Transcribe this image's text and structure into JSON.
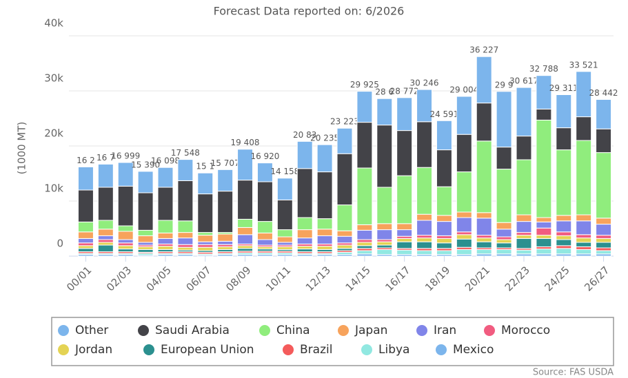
{
  "chart_data": {
    "type": "stacked_bar",
    "title": "Forecast Data reported on: 6/2026",
    "y_label": "(1000 MT)",
    "source": "Source: FAS USDA",
    "categories": [
      "00/01",
      null,
      "02/03",
      null,
      "04/05",
      null,
      "06/07",
      null,
      "08/09",
      null,
      "10/11",
      null,
      "12/13",
      null,
      "14/15",
      null,
      "16/17",
      null,
      "18/19",
      null,
      "20/21",
      null,
      "22/23",
      null,
      "24/25",
      null,
      "26/27"
    ],
    "ylim": [
      0,
      40000
    ],
    "yticks": [
      0,
      {
        "value": 10000,
        "label": "10k"
      },
      {
        "value": 20000,
        "label": "20k"
      },
      {
        "value": 30000,
        "label": "30k"
      },
      {
        "value": 40000,
        "label": "40k"
      }
    ],
    "grid": true,
    "totals": [
      16200,
      16700,
      16999,
      15390,
      16098,
      17548,
      15100,
      15707,
      19408,
      16920,
      14158,
      20830,
      20235,
      23223,
      29925,
      28600,
      28772,
      30246,
      24591,
      29004,
      36227,
      29900,
      30617,
      32788,
      29311,
      33521,
      28442
    ],
    "total_labels": [
      "16 2",
      "16 7",
      "16 999",
      "15 390",
      "16 098",
      "17 548",
      "15 1",
      "15 707",
      "19 408",
      "16 920",
      "14 158",
      "20 83",
      "20 235",
      "23 223",
      "29 925",
      "28 6",
      "28 772",
      "30 246",
      "24 591",
      "29 004",
      "36 227",
      "29 9",
      "30 617",
      "32 788",
      "29 311",
      "33 521",
      "28 442"
    ],
    "series": [
      {
        "name": "Other",
        "color": "#7cb5ec",
        "values": [
          4200,
          4200,
          4299,
          3890,
          3598,
          3848,
          3800,
          3907,
          5608,
          3420,
          3958,
          4930,
          4935,
          4623,
          5625,
          4800,
          5972,
          5846,
          5291,
          6904,
          8427,
          10100,
          8817,
          6088,
          6011,
          8221,
          5342
        ]
      },
      {
        "name": "Saudi Arabia",
        "color": "#434348",
        "values": [
          5800,
          6000,
          7200,
          6800,
          6000,
          7300,
          7000,
          7500,
          7100,
          7200,
          5400,
          8900,
          8500,
          9300,
          8300,
          11300,
          8200,
          8300,
          6700,
          6800,
          6900,
          4000,
          4300,
          2000,
          4000,
          4300,
          4300
        ]
      },
      {
        "name": "China",
        "color": "#90ed7d",
        "values": [
          1800,
          1600,
          1000,
          1000,
          2300,
          2100,
          500,
          300,
          1500,
          2100,
          1300,
          2200,
          1900,
          4700,
          10300,
          6600,
          8700,
          8500,
          5200,
          7300,
          13000,
          9700,
          10000,
          17700,
          11900,
          13500,
          11900
        ]
      },
      {
        "name": "Japan",
        "color": "#f7a35c",
        "values": [
          1200,
          1200,
          1500,
          1200,
          1000,
          1000,
          1200,
          1300,
          1300,
          1200,
          1000,
          1500,
          1200,
          1000,
          1000,
          1100,
          1100,
          1100,
          1100,
          1000,
          1000,
          1200,
          1200,
          800,
          1000,
          1100,
          1100
        ]
      },
      {
        "name": "Iran",
        "color": "#8085e9",
        "values": [
          800,
          700,
          600,
          500,
          1000,
          1200,
          500,
          600,
          1700,
          1000,
          500,
          1100,
          1500,
          1200,
          1700,
          1800,
          1200,
          2700,
          2600,
          2600,
          3100,
          1400,
          2000,
          1100,
          2000,
          2500,
          2000
        ]
      },
      {
        "name": "Morocco",
        "color": "#f15c80",
        "values": [
          500,
          500,
          500,
          300,
          400,
          500,
          500,
          400,
          300,
          300,
          300,
          400,
          400,
          400,
          500,
          400,
          400,
          500,
          500,
          500,
          500,
          500,
          500,
          1300,
          700,
          600,
          600
        ]
      },
      {
        "name": "Jordan",
        "color": "#e4d354",
        "values": [
          500,
          500,
          600,
          500,
          600,
          500,
          600,
          500,
          500,
          400,
          500,
          500,
          600,
          600,
          600,
          600,
          600,
          700,
          800,
          800,
          700,
          600,
          600,
          600,
          700,
          800,
          700
        ]
      },
      {
        "name": "European Union",
        "color": "#2b908f",
        "values": [
          600,
          1200,
          500,
          500,
          400,
          300,
          300,
          400,
          500,
          400,
          300,
          500,
          400,
          400,
          500,
          500,
          1200,
          1200,
          1000,
          1500,
          1100,
          900,
          1800,
          1500,
          1100,
          800,
          1000
        ]
      },
      {
        "name": "Brazil",
        "color": "#f45b5b",
        "values": [
          300,
          300,
          300,
          200,
          300,
          300,
          300,
          300,
          300,
          300,
          300,
          300,
          300,
          300,
          400,
          300,
          300,
          400,
          400,
          400,
          300,
          300,
          300,
          400,
          500,
          500,
          500
        ]
      },
      {
        "name": "Libya",
        "color": "#91e8e1",
        "values": [
          200,
          200,
          200,
          300,
          200,
          200,
          200,
          200,
          300,
          300,
          300,
          200,
          200,
          400,
          600,
          900,
          800,
          700,
          700,
          900,
          800,
          800,
          700,
          900,
          1000,
          800,
          600
        ]
      },
      {
        "name": "Mexico",
        "color": "#7cb5ec",
        "values": [
          300,
          300,
          300,
          200,
          300,
          300,
          200,
          300,
          300,
          300,
          300,
          300,
          300,
          300,
          400,
          300,
          300,
          300,
          300,
          300,
          400,
          400,
          400,
          400,
          400,
          400,
          400
        ]
      }
    ]
  }
}
